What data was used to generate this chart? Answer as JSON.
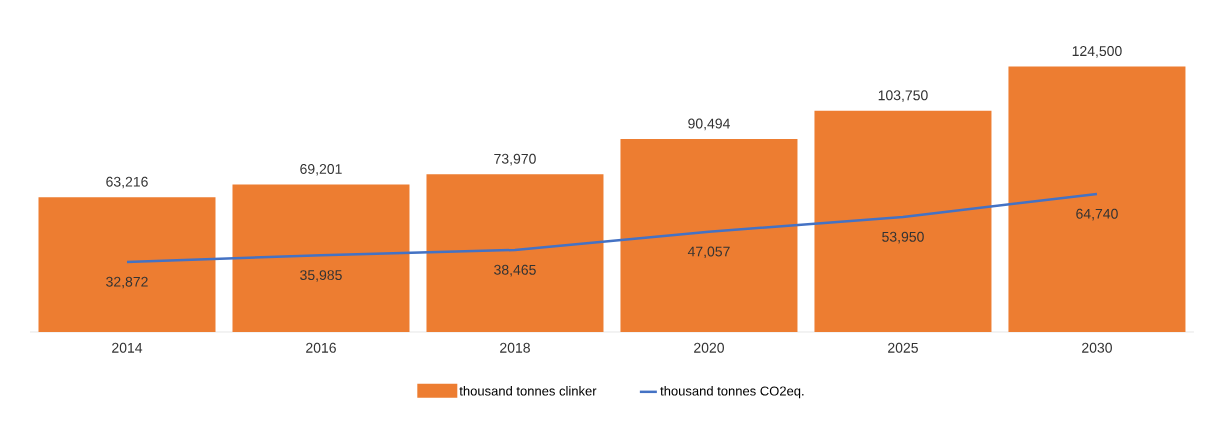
{
  "chart_data": {
    "type": "bar",
    "categories": [
      "2014",
      "2016",
      "2018",
      "2020",
      "2025",
      "2030"
    ],
    "series": [
      {
        "name": "thousand tonnes clinker",
        "color": "#ed7d31",
        "values": [
          63216,
          69201,
          73970,
          90494,
          103750,
          124500
        ],
        "value_labels": [
          "63,216",
          "69,201",
          "73,970",
          "90,494",
          "103,750",
          "124,500"
        ]
      },
      {
        "name": "thousand tonnes CO2eq.",
        "type": "line",
        "color": "#4472c4",
        "values": [
          32872,
          35985,
          38465,
          47057,
          53950,
          64740
        ],
        "value_labels": [
          "32,872",
          "35,985",
          "38,465",
          "47,057",
          "53,950",
          "64,740"
        ]
      }
    ],
    "legend": "bottom"
  }
}
